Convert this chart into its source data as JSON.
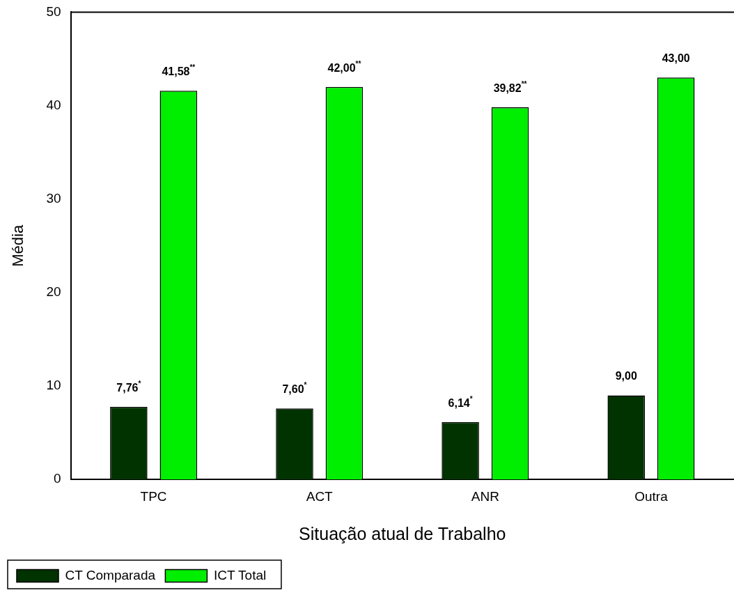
{
  "chart_data": {
    "type": "bar",
    "xlabel": "Situação atual de Trabalho",
    "ylabel": "Média",
    "categories": [
      "TPC",
      "ACT",
      "ANR",
      "Outra"
    ],
    "series": [
      {
        "name": "CT Comparada",
        "color": "#003300",
        "values": [
          7.76,
          7.6,
          6.14,
          9
        ],
        "value_labels": [
          "7,76$^{*}$",
          "7,60$^{*}$",
          "6,14$^{*}$",
          "9,00"
        ]
      },
      {
        "name": "ICT Total",
        "color": "#00ee00",
        "values": [
          41.58,
          42,
          39.82,
          43
        ],
        "value_labels": [
          "41,58$^{**}$",
          "42,00$^{**}$",
          "39,82$^{**}$",
          "43,00"
        ]
      }
    ],
    "ylim": [
      0,
      50
    ],
    "yticks": [
      0,
      10,
      20,
      30,
      40,
      50
    ],
    "grid": false,
    "legend": "bottom left"
  }
}
